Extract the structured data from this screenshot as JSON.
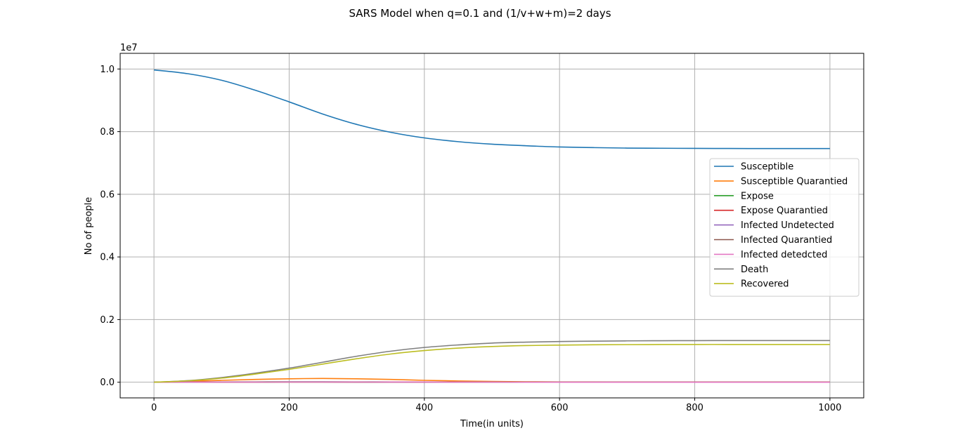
{
  "chart_data": {
    "type": "line",
    "title": "SARS Model when q=0.1 and (1/v+w+m)=2 days",
    "xlabel": "Time(in units)",
    "ylabel": "No of people",
    "y_offset_label": "1e7",
    "xlim": [
      -50,
      1050
    ],
    "ylim": [
      -500000,
      10500000
    ],
    "x_ticks": [
      0,
      200,
      400,
      600,
      800,
      1000
    ],
    "x_tick_labels": [
      "0",
      "200",
      "400",
      "600",
      "800",
      "1000"
    ],
    "y_ticks": [
      0,
      2000000,
      4000000,
      6000000,
      8000000,
      10000000
    ],
    "y_tick_labels": [
      "0.0",
      "0.2",
      "0.4",
      "0.6",
      "0.8",
      "1.0"
    ],
    "grid": true,
    "legend_position": "center-right",
    "x": [
      0,
      50,
      100,
      150,
      200,
      250,
      300,
      350,
      400,
      450,
      500,
      550,
      600,
      650,
      700,
      750,
      800,
      850,
      900,
      950,
      1000
    ],
    "series": [
      {
        "name": "Susceptible",
        "color": "#1f77b4",
        "values": [
          9970000,
          9850000,
          9640000,
          9320000,
          8950000,
          8560000,
          8230000,
          7980000,
          7800000,
          7680000,
          7600000,
          7550000,
          7510000,
          7490000,
          7475000,
          7470000,
          7465000,
          7462000,
          7460000,
          7460000,
          7460000
        ]
      },
      {
        "name": "Susceptible Quarantied",
        "color": "#ff7f0e",
        "values": [
          0,
          30000,
          60000,
          90000,
          110000,
          120000,
          110000,
          90000,
          60000,
          40000,
          25000,
          15000,
          10000,
          8000,
          6000,
          5000,
          5000,
          5000,
          5000,
          5000,
          5000
        ]
      },
      {
        "name": "Expose",
        "color": "#2ca02c",
        "values": [
          0,
          5000,
          8000,
          12000,
          15000,
          15000,
          12000,
          9000,
          6000,
          4000,
          2000,
          1000,
          500,
          300,
          200,
          100,
          100,
          100,
          100,
          100,
          100
        ]
      },
      {
        "name": "Expose Quarantied",
        "color": "#d62728",
        "values": [
          0,
          2000,
          4000,
          6000,
          8000,
          8000,
          6000,
          4000,
          3000,
          2000,
          1000,
          500,
          300,
          200,
          100,
          100,
          100,
          100,
          100,
          100,
          100
        ]
      },
      {
        "name": "Infected Undetected",
        "color": "#9467bd",
        "values": [
          0,
          3000,
          6000,
          9000,
          11000,
          11000,
          9000,
          6000,
          4000,
          2500,
          1500,
          800,
          400,
          200,
          100,
          100,
          100,
          100,
          100,
          100,
          100
        ]
      },
      {
        "name": "Infected Quarantied",
        "color": "#8c564b",
        "values": [
          0,
          1000,
          2000,
          3000,
          4000,
          4000,
          3000,
          2000,
          1500,
          1000,
          500,
          300,
          200,
          100,
          100,
          100,
          100,
          100,
          100,
          100,
          100
        ]
      },
      {
        "name": "Infected detedcted",
        "color": "#e377c2",
        "values": [
          0,
          2000,
          4000,
          6000,
          8000,
          9000,
          8000,
          6000,
          4500,
          3000,
          2000,
          1000,
          600,
          300,
          200,
          100,
          100,
          100,
          100,
          100,
          100
        ]
      },
      {
        "name": "Death",
        "color": "#7f7f7f",
        "values": [
          0,
          50000,
          150000,
          290000,
          450000,
          640000,
          830000,
          990000,
          1110000,
          1190000,
          1250000,
          1280000,
          1300000,
          1310000,
          1320000,
          1325000,
          1328000,
          1330000,
          1330000,
          1330000,
          1330000
        ]
      },
      {
        "name": "Recovered",
        "color": "#bcbd22",
        "values": [
          0,
          45000,
          130000,
          260000,
          410000,
          580000,
          750000,
          900000,
          1010000,
          1090000,
          1140000,
          1170000,
          1185000,
          1195000,
          1200000,
          1203000,
          1205000,
          1205000,
          1205000,
          1205000,
          1205000
        ]
      }
    ]
  }
}
